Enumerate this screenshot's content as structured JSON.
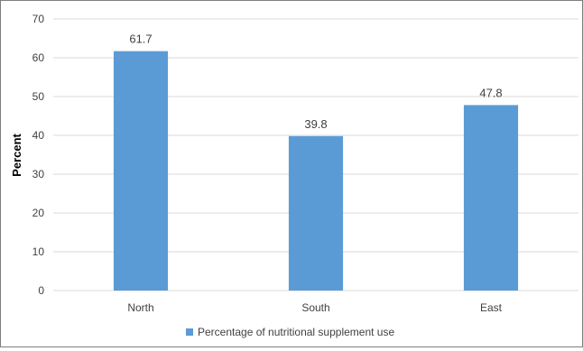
{
  "chart_data": {
    "type": "bar",
    "categories": [
      "North",
      "South",
      "East"
    ],
    "series": [
      {
        "name": "Percentage of nutritional supplement use",
        "values": [
          61.7,
          39.8,
          47.8
        ]
      }
    ],
    "title": "",
    "xlabel": "",
    "ylabel": "Percent",
    "ylim": [
      0,
      70
    ],
    "yticks": [
      0,
      10,
      20,
      30,
      40,
      50,
      60,
      70
    ],
    "data_labels": [
      "61.7",
      "39.8",
      "47.8"
    ],
    "grid": true,
    "legend": "bottom",
    "colors": {
      "bar": "#5b9bd5",
      "grid": "#d9d9d9",
      "text": "#404040",
      "axis_label": "#000000"
    }
  }
}
